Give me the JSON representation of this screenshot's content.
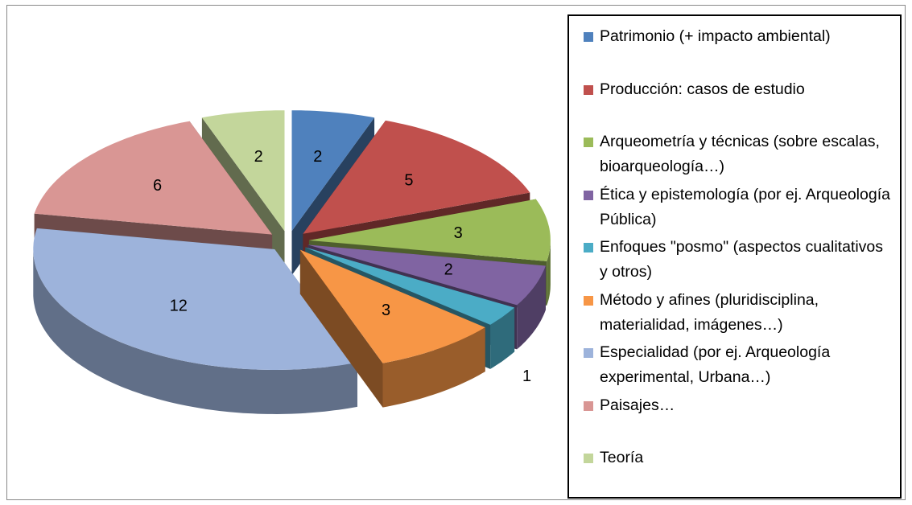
{
  "chart_data": {
    "type": "pie3d",
    "categories": [
      "Patrimonio (+ impacto ambiental)",
      "Producción: casos de estudio",
      "Arqueometría y técnicas (sobre escalas, bioarqueología…)",
      "Ética y epistemología (por ej. Arqueología Pública)",
      "Enfoques \"posmo\" (aspectos cualitativos y otros)",
      "Método y afines (pluridisciplina, materialidad, imágenes…)",
      "Especialidad (por ej. Arqueología experimental, Urbana…)",
      "Paisajes…",
      "Teoría"
    ],
    "values": [
      2,
      5,
      3,
      2,
      1,
      3,
      12,
      6,
      2
    ],
    "colors": [
      "#4f81bd",
      "#c0504d",
      "#9bbb59",
      "#8064a2",
      "#4bacc6",
      "#f79646",
      "#9db3db",
      "#d99694",
      "#c3d69b"
    ],
    "legend": "right"
  }
}
